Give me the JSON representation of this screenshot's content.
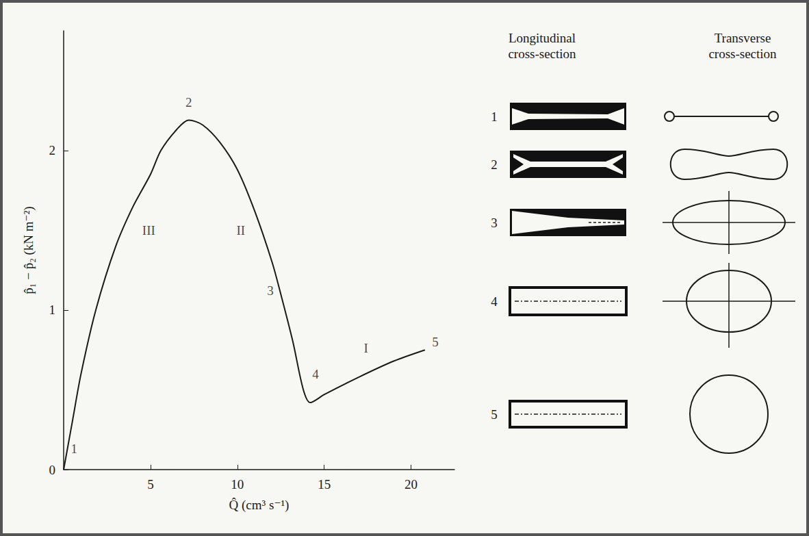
{
  "chart_data": {
    "type": "line",
    "x_label": "Q̂ (cm³ s⁻¹)",
    "y_label": "p̂₁ − p̂₂ (kN m⁻²)",
    "x": [
      0,
      0.5,
      1,
      1.85,
      3,
      4,
      5,
      5.6,
      6.5,
      7.2,
      8,
      9,
      10,
      11,
      12,
      12.5,
      13.2,
      13.8,
      14.2,
      15,
      17,
      19,
      20.8
    ],
    "values": [
      0,
      0.3,
      0.6,
      1,
      1.4,
      1.65,
      1.85,
      2,
      2.13,
      2.19,
      2.16,
      2.05,
      1.88,
      1.62,
      1.3,
      1.1,
      0.8,
      0.5,
      0.42,
      0.47,
      0.58,
      0.68,
      0.75
    ],
    "color": "#1a1a1a",
    "line_style": "solid",
    "xlim": [
      0,
      22.5
    ],
    "xticks": [
      5,
      10,
      15,
      20
    ],
    "ylim": [
      0,
      2.75
    ],
    "yticks": [
      0,
      1,
      2
    ],
    "grid": false,
    "annotations": [
      {
        "text": "1",
        "x": 0.6,
        "y": 0.13
      },
      {
        "text": "2",
        "x": 7.2,
        "y": 2.3
      },
      {
        "text": "3",
        "x": 11.9,
        "y": 1.12
      },
      {
        "text": "4",
        "x": 14.5,
        "y": 0.6
      },
      {
        "text": "5",
        "x": 21.4,
        "y": 0.8
      },
      {
        "text": "I",
        "x": 17.4,
        "y": 0.76
      },
      {
        "text": "II",
        "x": 10.2,
        "y": 1.5
      },
      {
        "text": "III",
        "x": 4.9,
        "y": 1.5
      }
    ]
  },
  "diagram": {
    "headers": [
      "Longitudinal cross-section",
      "Transverse cross-section"
    ],
    "row_labels": [
      "1",
      "2",
      "3",
      "4",
      "5"
    ]
  }
}
